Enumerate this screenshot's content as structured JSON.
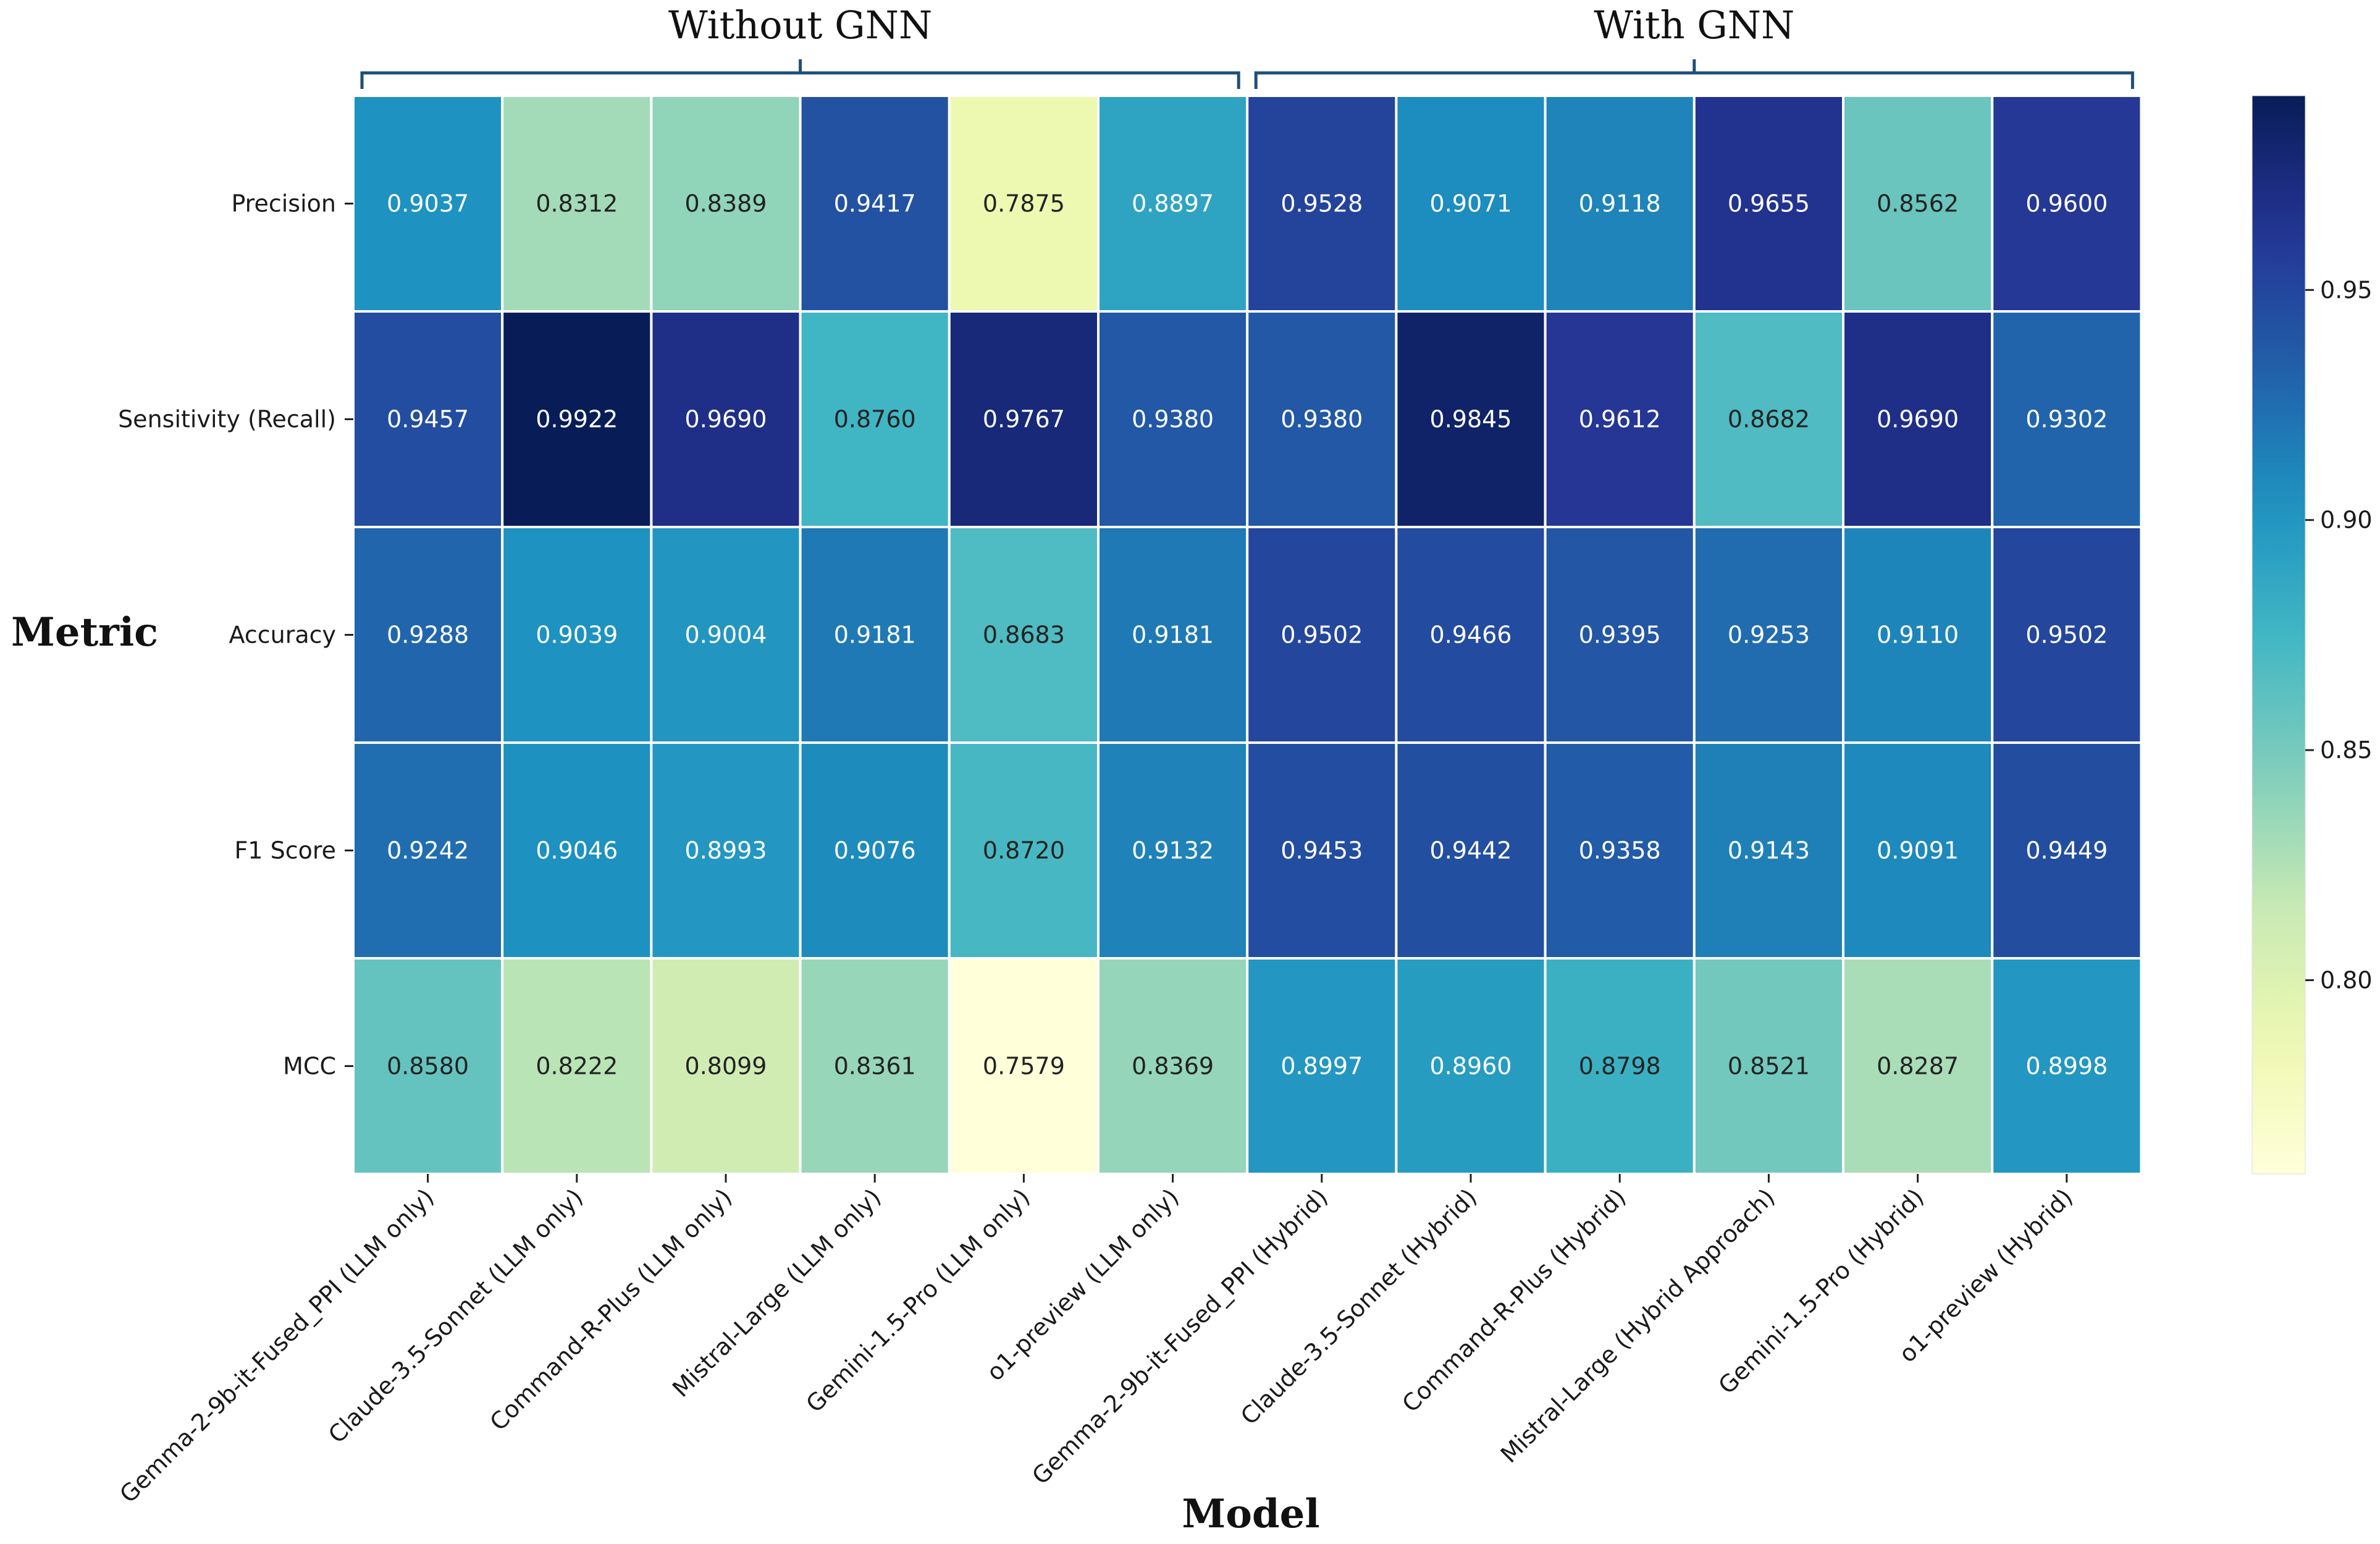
{
  "chart_data": {
    "type": "heatmap",
    "title": "",
    "xlabel": "Model",
    "ylabel": "Metric",
    "groups": [
      {
        "label": "Without GNN",
        "start": 0,
        "end": 5
      },
      {
        "label": "With GNN",
        "start": 6,
        "end": 11
      }
    ],
    "x_categories": [
      "Gemma-2-9b-it-Fused_PPI (LLM only)",
      "Claude-3.5-Sonnet (LLM only)",
      "Command-R-Plus (LLM only)",
      "Mistral-Large (LLM only)",
      "Gemini-1.5-Pro (LLM only)",
      "o1-preview (LLM only)",
      "Gemma-2-9b-it-Fused_PPI (Hybrid)",
      "Claude-3.5-Sonnet (Hybrid)",
      "Command-R-Plus (Hybrid)",
      "Mistral-Large (Hybrid Approach)",
      "Gemini-1.5-Pro (Hybrid)",
      "o1-preview (Hybrid)"
    ],
    "y_categories": [
      "Precision",
      "Sensitivity (Recall)",
      "Accuracy",
      "F1 Score",
      "MCC"
    ],
    "values": [
      [
        0.9037,
        0.8312,
        0.8389,
        0.9417,
        0.7875,
        0.8897,
        0.9528,
        0.9071,
        0.9118,
        0.9655,
        0.8562,
        0.96
      ],
      [
        0.9457,
        0.9922,
        0.969,
        0.876,
        0.9767,
        0.938,
        0.938,
        0.9845,
        0.9612,
        0.8682,
        0.969,
        0.9302
      ],
      [
        0.9288,
        0.9039,
        0.9004,
        0.9181,
        0.8683,
        0.9181,
        0.9502,
        0.9466,
        0.9395,
        0.9253,
        0.911,
        0.9502
      ],
      [
        0.9242,
        0.9046,
        0.8993,
        0.9076,
        0.872,
        0.9132,
        0.9453,
        0.9442,
        0.9358,
        0.9143,
        0.9091,
        0.9449
      ],
      [
        0.858,
        0.8222,
        0.8099,
        0.8361,
        0.7579,
        0.8369,
        0.8997,
        0.896,
        0.8798,
        0.8521,
        0.8287,
        0.8998
      ]
    ],
    "value_format": "4 decimals",
    "colormap": "YlGnBu",
    "colorbar": {
      "vmin": 0.7579,
      "vmax": 0.9922,
      "ticks": [
        0.8,
        0.85,
        0.9,
        0.95
      ],
      "tick_labels": [
        "0.80",
        "0.85",
        "0.90",
        "0.95"
      ]
    },
    "grid": true
  },
  "colors": {
    "bracket": "#1f4e79",
    "cell_border": "#ffffff",
    "text_dark": "#222222",
    "text_light": "#ffffff"
  }
}
